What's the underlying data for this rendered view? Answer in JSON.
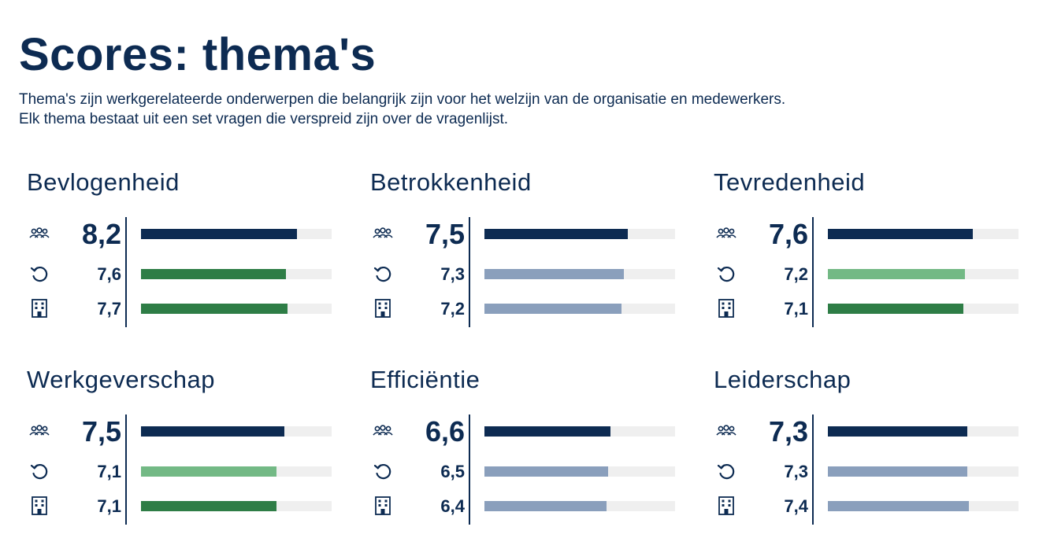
{
  "header": {
    "title": "Scores: thema's",
    "intro_line1": "Thema's zijn werkgerelateerde onderwerpen die belangrijk zijn voor het welzijn van de organisatie en medewerkers.",
    "intro_line2": "Elk thema bestaat uit een set vragen die verspreid zijn over de vragenlijst."
  },
  "icons": {
    "main": "people-group-icon",
    "sub1": "history-icon",
    "sub2": "building-icon"
  },
  "colors": {
    "dark_navy": "#0d2b52",
    "green": "#2e7d46",
    "light_green": "#73b985",
    "grey_blue": "#8a9fbc",
    "track": "#efefef"
  },
  "scale_max": 10,
  "themes": [
    {
      "title": "Bevlogenheid",
      "main": {
        "label": "8,2",
        "value": 8.2,
        "color": "#0d2b52"
      },
      "sub1": {
        "label": "7,6",
        "value": 7.6,
        "color": "#2e7d46"
      },
      "sub2": {
        "label": "7,7",
        "value": 7.7,
        "color": "#2e7d46"
      }
    },
    {
      "title": "Betrokkenheid",
      "main": {
        "label": "7,5",
        "value": 7.5,
        "color": "#0d2b52"
      },
      "sub1": {
        "label": "7,3",
        "value": 7.3,
        "color": "#8a9fbc"
      },
      "sub2": {
        "label": "7,2",
        "value": 7.2,
        "color": "#8a9fbc"
      }
    },
    {
      "title": "Tevredenheid",
      "main": {
        "label": "7,6",
        "value": 7.6,
        "color": "#0d2b52"
      },
      "sub1": {
        "label": "7,2",
        "value": 7.2,
        "color": "#73b985"
      },
      "sub2": {
        "label": "7,1",
        "value": 7.1,
        "color": "#2e7d46"
      }
    },
    {
      "title": "Werkgeverschap",
      "main": {
        "label": "7,5",
        "value": 7.5,
        "color": "#0d2b52"
      },
      "sub1": {
        "label": "7,1",
        "value": 7.1,
        "color": "#73b985"
      },
      "sub2": {
        "label": "7,1",
        "value": 7.1,
        "color": "#2e7d46"
      }
    },
    {
      "title": "Efficiëntie",
      "main": {
        "label": "6,6",
        "value": 6.6,
        "color": "#0d2b52"
      },
      "sub1": {
        "label": "6,5",
        "value": 6.5,
        "color": "#8a9fbc"
      },
      "sub2": {
        "label": "6,4",
        "value": 6.4,
        "color": "#8a9fbc"
      }
    },
    {
      "title": "Leiderschap",
      "main": {
        "label": "7,3",
        "value": 7.3,
        "color": "#0d2b52"
      },
      "sub1": {
        "label": "7,3",
        "value": 7.3,
        "color": "#8a9fbc"
      },
      "sub2": {
        "label": "7,4",
        "value": 7.4,
        "color": "#8a9fbc"
      }
    }
  ]
}
